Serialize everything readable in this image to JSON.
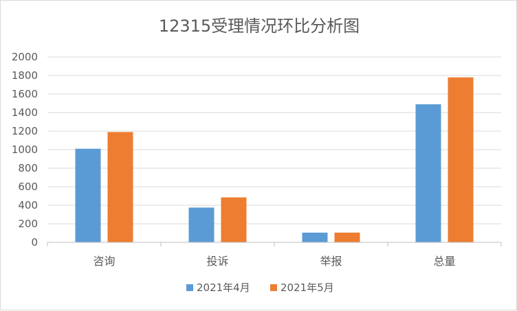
{
  "chart_data": {
    "type": "bar",
    "title": "12315受理情况环比分析图",
    "categories": [
      "咨询",
      "投诉",
      "举报",
      "总量"
    ],
    "series": [
      {
        "name": "2021年4月",
        "color": "#5b9bd5",
        "values": [
          1010,
          375,
          105,
          1490
        ]
      },
      {
        "name": "2021年5月",
        "color": "#ed7d31",
        "values": [
          1190,
          485,
          105,
          1780
        ]
      }
    ],
    "ylim": [
      0,
      2000
    ],
    "yticks": [
      "0",
      "200",
      "400",
      "600",
      "800",
      "1000",
      "1200",
      "1400",
      "1600",
      "1800",
      "2000"
    ],
    "grid": true,
    "legend": "bottom"
  }
}
